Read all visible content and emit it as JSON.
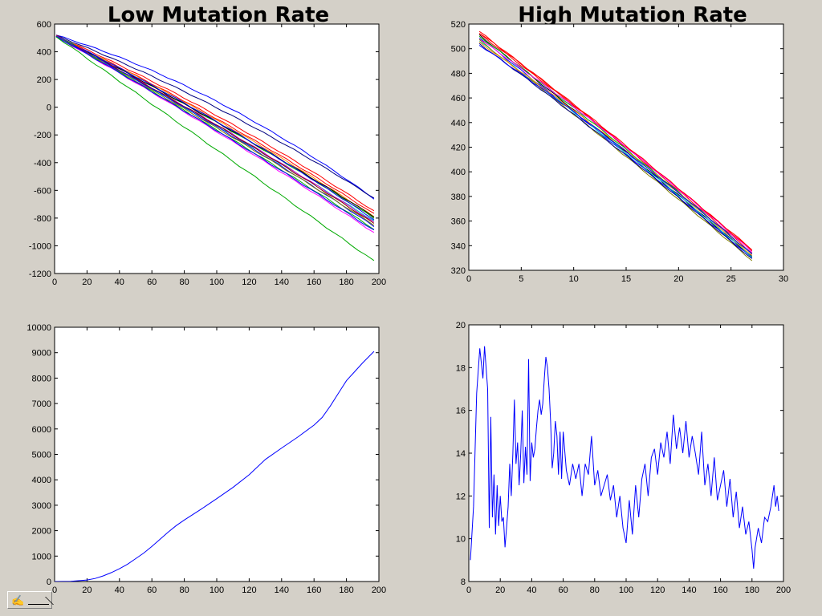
{
  "figure": {
    "titles": {
      "left": "Low Mutation Rate",
      "right": "High Mutation Rate"
    },
    "background": "#d4d0c8",
    "toolbar": {
      "icon": "hand-cursor-icon"
    }
  },
  "chart_data": [
    {
      "id": "top-left",
      "type": "line",
      "title": "",
      "xlim": [
        0,
        200
      ],
      "ylim": [
        -1200,
        600
      ],
      "xticks": [
        0,
        20,
        40,
        60,
        80,
        100,
        120,
        140,
        160,
        180,
        200
      ],
      "yticks": [
        600,
        400,
        200,
        0,
        -200,
        -400,
        -600,
        -800,
        -1000,
        -1200
      ],
      "series": [
        {
          "color": "#0000ff",
          "x0": 1,
          "x1": 197,
          "y0": 520,
          "y1": -660,
          "curve": 0.1
        },
        {
          "color": "#000080",
          "x0": 1,
          "x1": 197,
          "y0": 518,
          "y1": -655,
          "curve": 0.06
        },
        {
          "color": "#ff0000",
          "x0": 1,
          "x1": 197,
          "y0": 515,
          "y1": -750,
          "curve": 0.05
        },
        {
          "color": "#ff0000",
          "x0": 1,
          "x1": 197,
          "y0": 512,
          "y1": -770,
          "curve": 0.04
        },
        {
          "color": "#ff8c00",
          "x0": 1,
          "x1": 197,
          "y0": 512,
          "y1": -790,
          "curve": 0.04
        },
        {
          "color": "#00aa00",
          "x0": 1,
          "x1": 197,
          "y0": 514,
          "y1": -800,
          "curve": 0.03
        },
        {
          "color": "#000000",
          "x0": 1,
          "x1": 197,
          "y0": 510,
          "y1": -790,
          "curve": 0.03
        },
        {
          "color": "#0000ff",
          "x0": 1,
          "x1": 197,
          "y0": 512,
          "y1": -810,
          "curve": 0.04
        },
        {
          "color": "#00cccc",
          "x0": 1,
          "x1": 197,
          "y0": 510,
          "y1": -820,
          "curve": 0.02
        },
        {
          "color": "#cc00cc",
          "x0": 1,
          "x1": 197,
          "y0": 510,
          "y1": -830,
          "curve": 0.03
        },
        {
          "color": "#800000",
          "x0": 1,
          "x1": 197,
          "y0": 511,
          "y1": -840,
          "curve": 0.03
        },
        {
          "color": "#0000ff",
          "x0": 1,
          "x1": 197,
          "y0": 511,
          "y1": -860,
          "curve": 0.03
        },
        {
          "color": "#808000",
          "x0": 1,
          "x1": 197,
          "y0": 510,
          "y1": -850,
          "curve": 0.02
        },
        {
          "color": "#00aa00",
          "x0": 1,
          "x1": 197,
          "y0": 510,
          "y1": -880,
          "curve": 0.02
        },
        {
          "color": "#ff00ff",
          "x0": 1,
          "x1": 197,
          "y0": 509,
          "y1": -905,
          "curve": 0.02
        },
        {
          "color": "#0000ff",
          "x0": 1,
          "x1": 197,
          "y0": 510,
          "y1": -890,
          "curve": 0.02
        },
        {
          "color": "#00aa00",
          "x0": 1,
          "x1": 197,
          "y0": 510,
          "y1": -1110,
          "curve": 0.0
        }
      ]
    },
    {
      "id": "top-right",
      "type": "line",
      "title": "",
      "xlim": [
        0,
        30
      ],
      "ylim": [
        320,
        520
      ],
      "xticks": [
        0,
        5,
        10,
        15,
        20,
        25,
        30
      ],
      "yticks": [
        520,
        500,
        480,
        460,
        440,
        420,
        400,
        380,
        360,
        340,
        320
      ],
      "series": [
        {
          "color": "#ff0000",
          "x0": 1,
          "x1": 27,
          "y0": 514,
          "y1": 337,
          "curve": 0.01
        },
        {
          "color": "#ff0000",
          "x0": 1,
          "x1": 27,
          "y0": 512,
          "y1": 334,
          "curve": 0.02
        },
        {
          "color": "#000000",
          "x0": 1,
          "x1": 27,
          "y0": 511,
          "y1": 331,
          "curve": 0.01
        },
        {
          "color": "#00aa00",
          "x0": 1,
          "x1": 27,
          "y0": 510,
          "y1": 333,
          "curve": 0.02
        },
        {
          "color": "#0000ff",
          "x0": 1,
          "x1": 27,
          "y0": 509,
          "y1": 330,
          "curve": 0.01
        },
        {
          "color": "#ff00ff",
          "x0": 1,
          "x1": 27,
          "y0": 508,
          "y1": 335,
          "curve": 0.03
        },
        {
          "color": "#00cccc",
          "x0": 1,
          "x1": 27,
          "y0": 506,
          "y1": 331,
          "curve": 0.02
        },
        {
          "color": "#808000",
          "x0": 1,
          "x1": 27,
          "y0": 507,
          "y1": 328,
          "curve": 0.01
        },
        {
          "color": "#ff8c00",
          "x0": 1,
          "x1": 27,
          "y0": 505,
          "y1": 332,
          "curve": 0.03
        },
        {
          "color": "#000080",
          "x0": 1,
          "x1": 27,
          "y0": 504,
          "y1": 329,
          "curve": 0.02
        },
        {
          "color": "#0000ff",
          "x0": 1,
          "x1": 27,
          "y0": 503,
          "y1": 333,
          "curve": 0.03
        },
        {
          "color": "#ff0000",
          "x0": 1,
          "x1": 27,
          "y0": 513,
          "y1": 336,
          "curve": 0.02
        }
      ]
    },
    {
      "id": "bottom-left",
      "type": "line",
      "title": "",
      "xlim": [
        0,
        200
      ],
      "ylim": [
        0,
        10000
      ],
      "xticks": [
        0,
        20,
        40,
        60,
        80,
        100,
        120,
        140,
        160,
        180,
        200
      ],
      "yticks": [
        10000,
        9000,
        8000,
        7000,
        6000,
        5000,
        4000,
        3000,
        2000,
        1000,
        0
      ],
      "series": [
        {
          "color": "#0000ff",
          "x": [
            0,
            10,
            20,
            25,
            30,
            35,
            40,
            45,
            50,
            55,
            60,
            65,
            70,
            75,
            80,
            90,
            100,
            110,
            120,
            130,
            140,
            150,
            160,
            165,
            170,
            175,
            180,
            185,
            190,
            197
          ],
          "y": [
            0,
            10,
            60,
            120,
            220,
            350,
            500,
            680,
            900,
            1120,
            1380,
            1660,
            1940,
            2200,
            2420,
            2830,
            3260,
            3700,
            4200,
            4800,
            5250,
            5680,
            6150,
            6450,
            6900,
            7400,
            7900,
            8250,
            8600,
            9050
          ]
        }
      ]
    },
    {
      "id": "bottom-right",
      "type": "line",
      "title": "",
      "xlim": [
        0,
        200
      ],
      "ylim": [
        8,
        20
      ],
      "xticks": [
        0,
        20,
        40,
        60,
        80,
        100,
        120,
        140,
        160,
        180,
        200
      ],
      "yticks": [
        20,
        18,
        16,
        14,
        12,
        10,
        8
      ],
      "series": [
        {
          "color": "#0000ff",
          "x": [
            1,
            3,
            5,
            7,
            9,
            10,
            12,
            13,
            14,
            15,
            16,
            17,
            18,
            19,
            20,
            21,
            22,
            23,
            24,
            25,
            26,
            27,
            28,
            29,
            30,
            31,
            32,
            33,
            34,
            35,
            36,
            37,
            38,
            39,
            40,
            41,
            42,
            43,
            44,
            45,
            46,
            47,
            48,
            49,
            50,
            51,
            52,
            53,
            54,
            55,
            56,
            57,
            58,
            59,
            60,
            62,
            64,
            66,
            68,
            70,
            72,
            74,
            76,
            78,
            80,
            82,
            84,
            86,
            88,
            90,
            92,
            94,
            96,
            98,
            100,
            102,
            104,
            106,
            108,
            110,
            112,
            114,
            116,
            118,
            120,
            122,
            124,
            126,
            128,
            130,
            132,
            134,
            136,
            138,
            140,
            142,
            144,
            146,
            148,
            150,
            152,
            154,
            156,
            158,
            160,
            162,
            164,
            166,
            168,
            170,
            172,
            174,
            176,
            178,
            180,
            181,
            182,
            184,
            186,
            188,
            190,
            192,
            194,
            195,
            196,
            197
          ],
          "y": [
            9.0,
            11.5,
            16.8,
            18.9,
            17.5,
            19.0,
            17.0,
            10.5,
            15.7,
            11.0,
            13.0,
            10.2,
            12.5,
            10.6,
            12.0,
            10.8,
            11.0,
            9.6,
            10.5,
            11.5,
            13.5,
            12.0,
            14.0,
            16.5,
            13.5,
            14.5,
            12.5,
            14.0,
            16.0,
            12.6,
            14.3,
            13.0,
            18.4,
            12.7,
            14.5,
            13.8,
            14.2,
            15.2,
            16.0,
            16.5,
            15.8,
            16.3,
            17.5,
            18.5,
            18.0,
            17.0,
            15.5,
            13.3,
            14.0,
            15.5,
            14.8,
            13.0,
            15.0,
            12.8,
            15.0,
            13.2,
            12.5,
            13.5,
            12.8,
            13.5,
            12.0,
            13.5,
            13.0,
            14.8,
            12.5,
            13.2,
            12.0,
            12.5,
            13.0,
            11.8,
            12.5,
            11.0,
            12.0,
            10.5,
            9.8,
            11.8,
            10.2,
            12.5,
            11.0,
            12.8,
            13.5,
            12.0,
            13.8,
            14.2,
            13.0,
            14.5,
            13.8,
            15.0,
            13.5,
            15.8,
            14.2,
            15.2,
            14.0,
            15.5,
            13.8,
            14.8,
            14.0,
            13.0,
            15.0,
            12.5,
            13.5,
            12.0,
            13.8,
            11.8,
            12.5,
            13.2,
            11.5,
            12.8,
            11.0,
            12.2,
            10.5,
            11.5,
            10.2,
            10.8,
            9.5,
            8.6,
            9.6,
            10.5,
            9.8,
            11.0,
            10.8,
            11.5,
            12.5,
            11.5,
            12.0,
            11.3
          ]
        }
      ]
    }
  ]
}
